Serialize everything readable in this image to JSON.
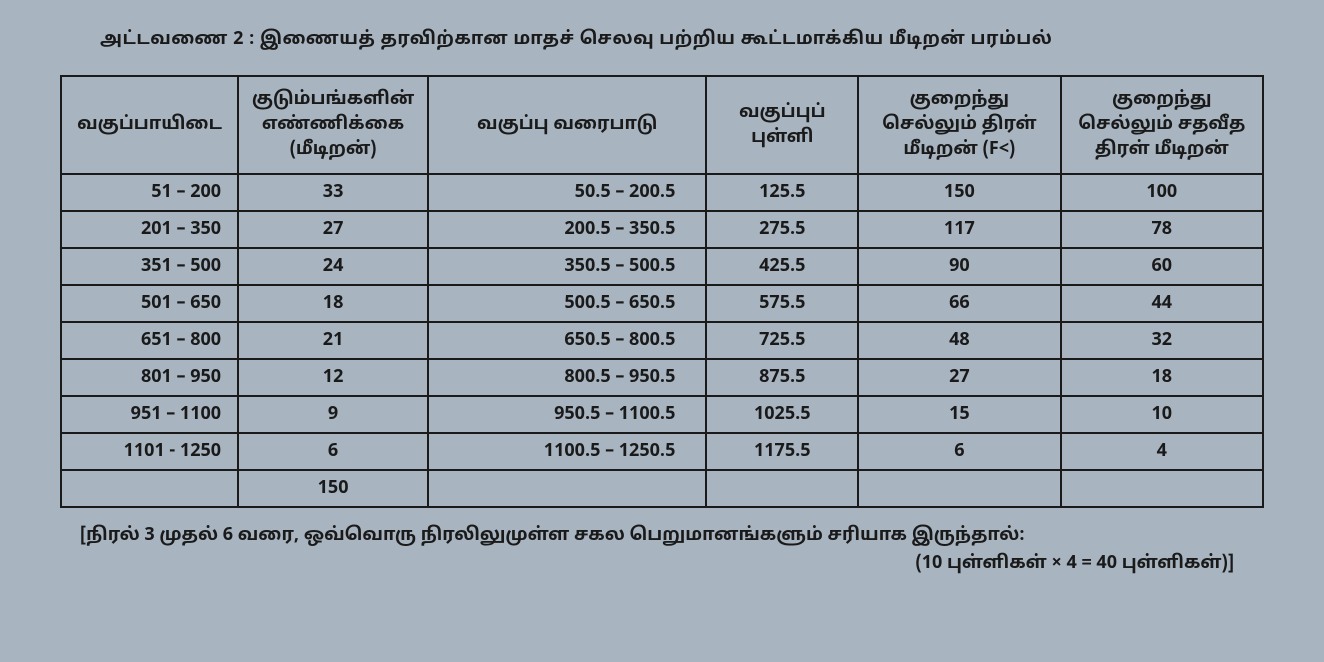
{
  "title": "அட்டவணை 2 : இணையத் தரவிற்கான மாதச் செலவு பற்றிய கூட்டமாக்கிய மீடிறன் பரம்பல்",
  "headers": {
    "c1": "வகுப்பாயிடை",
    "c2": "குடும்பங்களின் எண்ணிக்கை (மீடிறன்)",
    "c3": "வகுப்பு வரைபாடு",
    "c4": "வகுப்புப் புள்ளி",
    "c5": "குறைந்து செல்லும் திரள் மீடிறன் (F<)",
    "c6": "குறைந்து செல்லும் சதவீத திரள் மீடிறன்"
  },
  "rows": [
    {
      "c1": "51 – 200",
      "c2": "33",
      "c3": "50.5 – 200.5",
      "c4": "125.5",
      "c5": "150",
      "c6": "100"
    },
    {
      "c1": "201 – 350",
      "c2": "27",
      "c3": "200.5 – 350.5",
      "c4": "275.5",
      "c5": "117",
      "c6": "78"
    },
    {
      "c1": "351 – 500",
      "c2": "24",
      "c3": "350.5 – 500.5",
      "c4": "425.5",
      "c5": "90",
      "c6": "60"
    },
    {
      "c1": "501 – 650",
      "c2": "18",
      "c3": "500.5 – 650.5",
      "c4": "575.5",
      "c5": "66",
      "c6": "44"
    },
    {
      "c1": "651 – 800",
      "c2": "21",
      "c3": "650.5 – 800.5",
      "c4": "725.5",
      "c5": "48",
      "c6": "32"
    },
    {
      "c1": "801 – 950",
      "c2": "12",
      "c3": "800.5 – 950.5",
      "c4": "875.5",
      "c5": "27",
      "c6": "18"
    },
    {
      "c1": "951 – 1100",
      "c2": "9",
      "c3": "950.5 – 1100.5",
      "c4": "1025.5",
      "c5": "15",
      "c6": "10"
    },
    {
      "c1": "1101 - 1250",
      "c2": "6",
      "c3": "1100.5 – 1250.5",
      "c4": "1175.5",
      "c5": "6",
      "c6": "4"
    }
  ],
  "total_row": {
    "c1": "",
    "c2": "150",
    "c3": "",
    "c4": "",
    "c5": "",
    "c6": ""
  },
  "footer": {
    "line1": "[நிரல் 3 முதல் 6 வரை, ஒவ்வொரு நிரலிலுமுள்ள சகல பெறுமானங்களும் சரியாக இருந்தால்:",
    "line2": "(10 புள்ளிகள் × 4 = 40 புள்ளிகள்)]"
  }
}
